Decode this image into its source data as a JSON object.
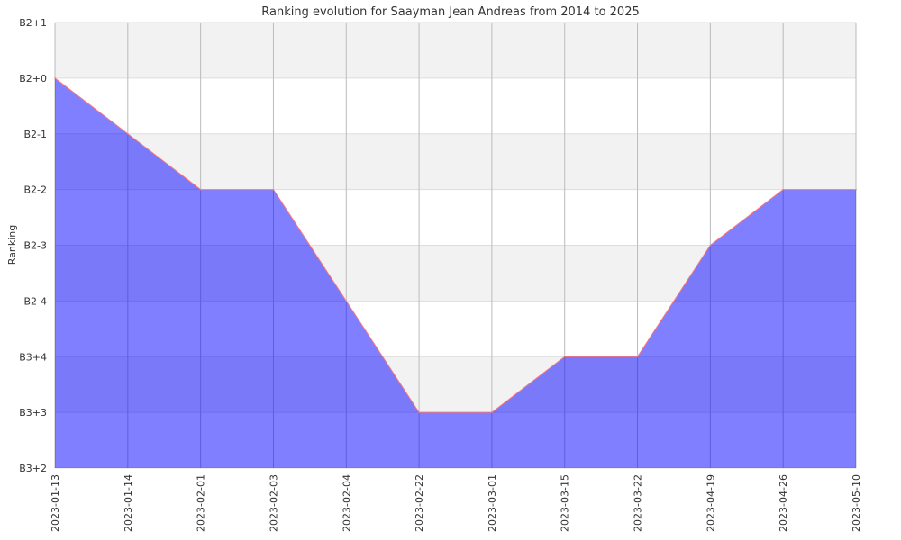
{
  "chart_data": {
    "type": "area",
    "title": "Ranking evolution for Saayman Jean Andreas from 2014 to 2025",
    "xlabel": "",
    "ylabel": "Ranking",
    "y_levels": [
      "B3+2",
      "B3+3",
      "B3+4",
      "B2-4",
      "B2-3",
      "B2-2",
      "B2-1",
      "B2+0",
      "B2+1"
    ],
    "x": [
      "2023-01-13",
      "2023-01-14",
      "2023-02-01",
      "2023-02-03",
      "2023-02-04",
      "2023-02-22",
      "2023-03-01",
      "2023-03-15",
      "2023-03-22",
      "2023-04-19",
      "2023-04-26",
      "2023-05-10"
    ],
    "series": [
      {
        "values": [
          "B2+0",
          "B2-1",
          "B2-2",
          "B2-2",
          "B2-4",
          "B3+3",
          "B3+3",
          "B3+4",
          "B3+4",
          "B2-3",
          "B2-2",
          "B2-2"
        ]
      }
    ],
    "grid": true,
    "band_colors": [
      "#ffffff",
      "#f2f2f2"
    ],
    "fill_color": "#0000ff",
    "fill_opacity": 0.5,
    "line_color": "#ff7777"
  }
}
